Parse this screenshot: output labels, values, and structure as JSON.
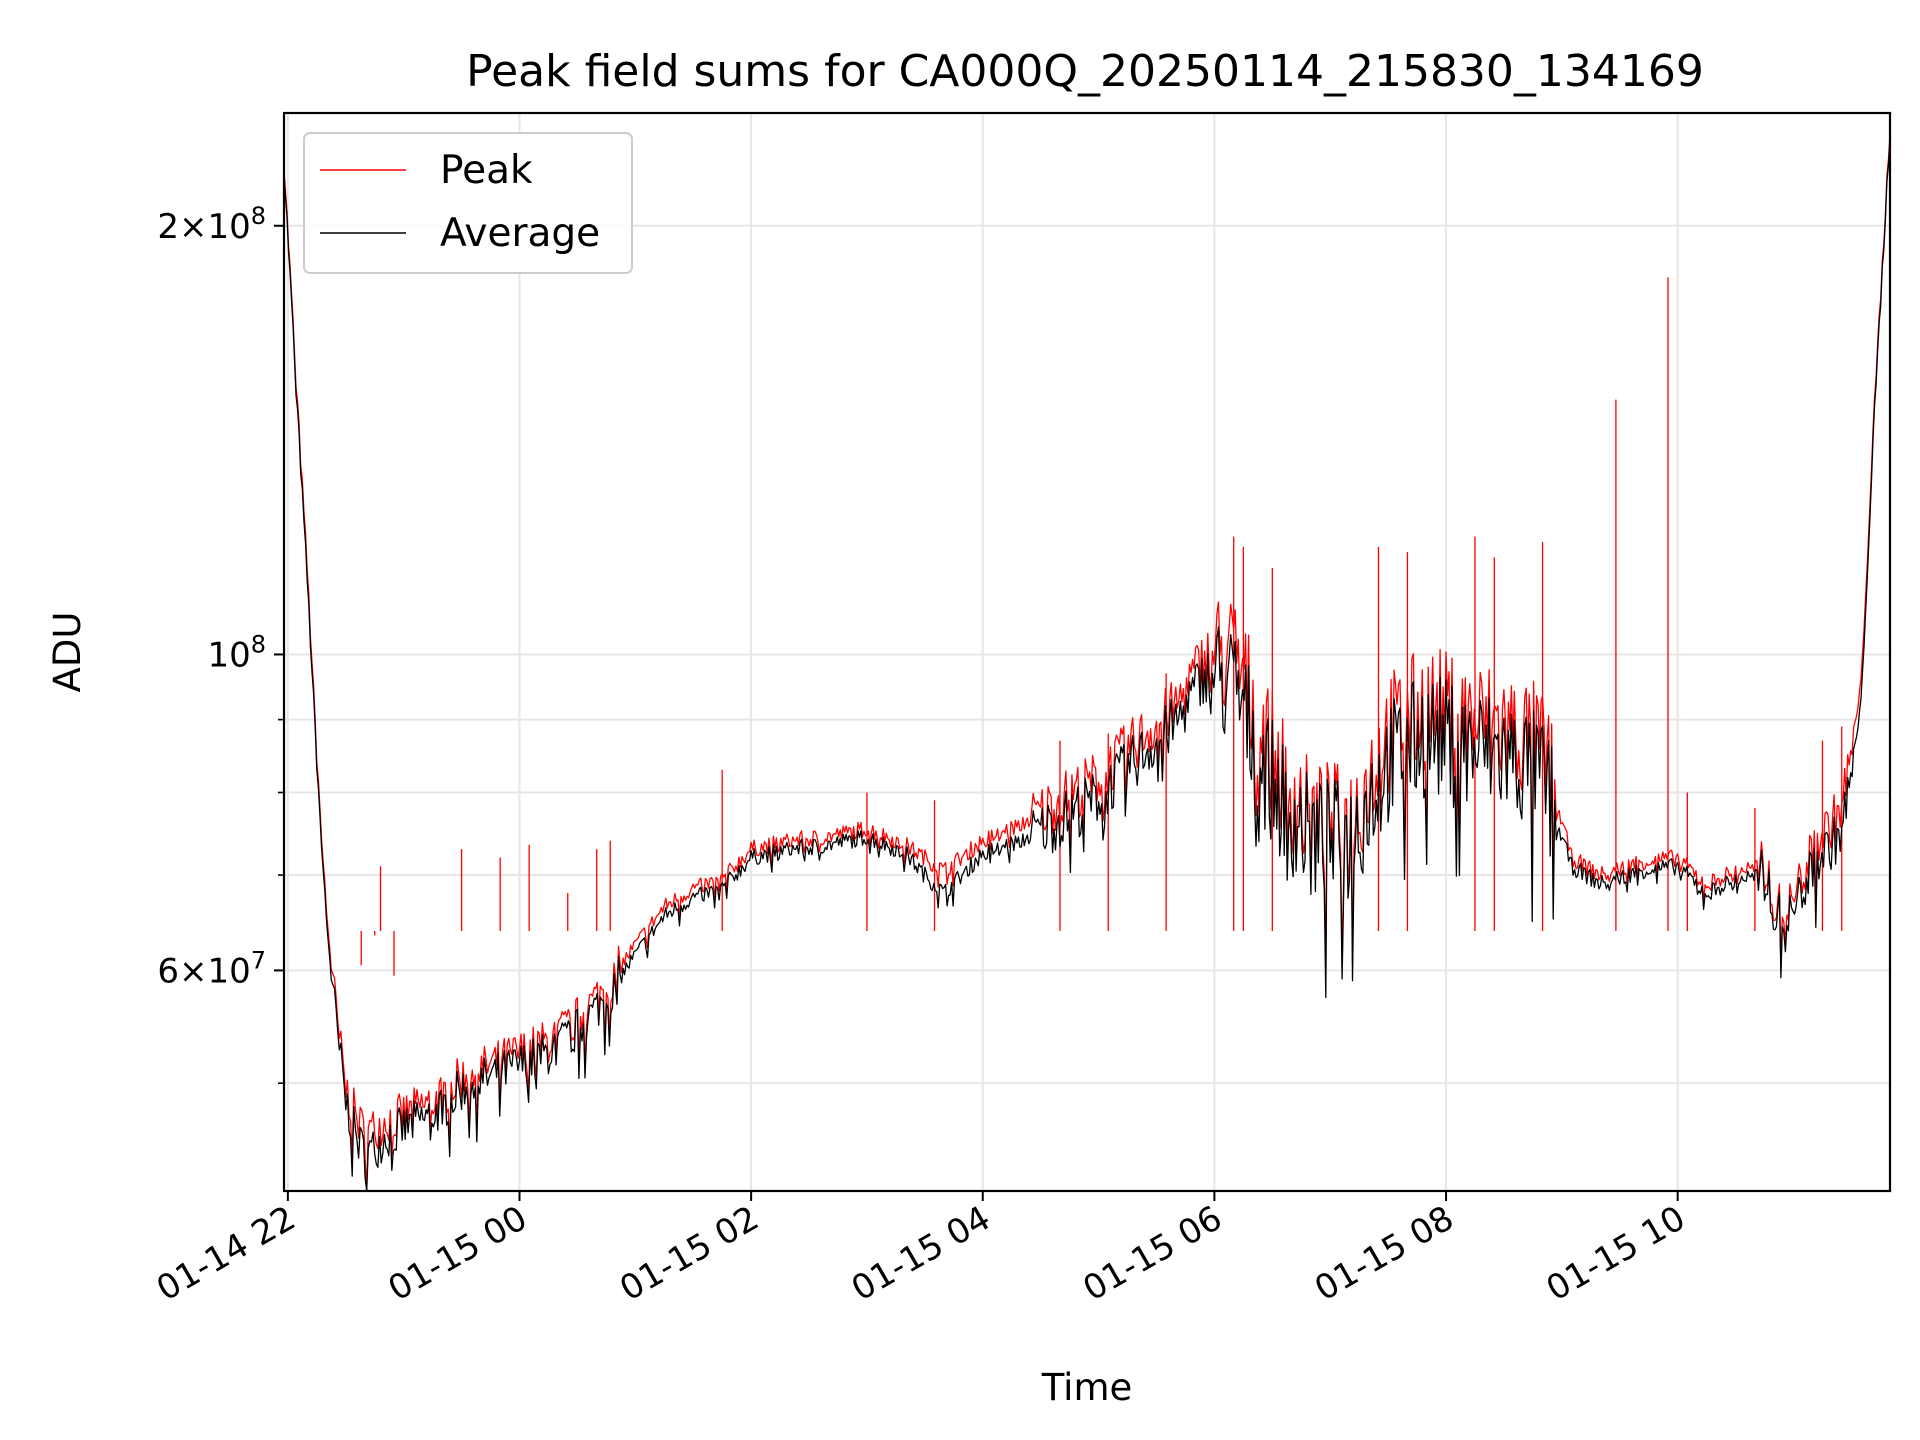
{
  "chart_data": {
    "type": "line",
    "title": "Peak field sums for CA000Q_20250114_215830_134169",
    "xlabel": "Time",
    "ylabel": "ADU",
    "yscale": "log",
    "ylim": [
      42000000,
      240000000
    ],
    "xlim": [
      "2025-01-14T21:58",
      "2025-01-15T11:50"
    ],
    "grid": true,
    "legend_position": "top-left",
    "x_ticks": [
      {
        "value": "2025-01-14T22:00",
        "label": "01-14 22"
      },
      {
        "value": "2025-01-15T00:00",
        "label": "01-15 00"
      },
      {
        "value": "2025-01-15T02:00",
        "label": "01-15 02"
      },
      {
        "value": "2025-01-15T04:00",
        "label": "01-15 04"
      },
      {
        "value": "2025-01-15T06:00",
        "label": "01-15 06"
      },
      {
        "value": "2025-01-15T08:00",
        "label": "01-15 08"
      },
      {
        "value": "2025-01-15T10:00",
        "label": "01-15 10"
      }
    ],
    "y_ticks": [
      {
        "value": 200000000,
        "mantissa": "2",
        "exponent": "8"
      },
      {
        "value": 100000000,
        "mantissa": "",
        "exponent": "8"
      },
      {
        "value": 60000000,
        "mantissa": "6",
        "exponent": "7"
      }
    ],
    "y_minor_ticks": [
      50000000,
      70000000,
      80000000,
      90000000
    ],
    "series": [
      {
        "name": "Peak",
        "color": "#ff0000",
        "points": [
          [
            "2025-01-14T21:58",
            222000000
          ],
          [
            "2025-01-14T22:05",
            150000000
          ],
          [
            "2025-01-14T22:10",
            115000000
          ],
          [
            "2025-01-14T22:15",
            85000000
          ],
          [
            "2025-01-14T22:20",
            66000000
          ],
          [
            "2025-01-14T22:25",
            56000000
          ],
          [
            "2025-01-14T22:30",
            49500000
          ],
          [
            "2025-01-14T22:35",
            47500000
          ],
          [
            "2025-01-14T22:40",
            46000000
          ],
          [
            "2025-01-14T22:45",
            46500000
          ],
          [
            "2025-01-14T22:50",
            47000000
          ],
          [
            "2025-01-14T23:00",
            47500000
          ],
          [
            "2025-01-14T23:10",
            48200000
          ],
          [
            "2025-01-14T23:20",
            49000000
          ],
          [
            "2025-01-14T23:30",
            50500000
          ],
          [
            "2025-01-14T23:45",
            51500000
          ],
          [
            "2025-01-15T00:00",
            52500000
          ],
          [
            "2025-01-15T00:15",
            53500000
          ],
          [
            "2025-01-15T00:30",
            55500000
          ],
          [
            "2025-01-15T00:45",
            58500000
          ],
          [
            "2025-01-15T01:00",
            62500000
          ],
          [
            "2025-01-15T01:15",
            66500000
          ],
          [
            "2025-01-15T01:30",
            68500000
          ],
          [
            "2025-01-15T01:45",
            69500000
          ],
          [
            "2025-01-15T02:00",
            73000000
          ],
          [
            "2025-01-15T02:20",
            74000000
          ],
          [
            "2025-01-15T02:40",
            74500000
          ],
          [
            "2025-01-15T03:00",
            75500000
          ],
          [
            "2025-01-15T03:20",
            73500000
          ],
          [
            "2025-01-15T03:30",
            72000000
          ],
          [
            "2025-01-15T03:40",
            70500000
          ],
          [
            "2025-01-15T04:00",
            74000000
          ],
          [
            "2025-01-15T04:20",
            76000000
          ],
          [
            "2025-01-15T04:40",
            79000000
          ],
          [
            "2025-01-15T05:00",
            82000000
          ],
          [
            "2025-01-15T05:20",
            87000000
          ],
          [
            "2025-01-15T05:40",
            92000000
          ],
          [
            "2025-01-15T05:55",
            100000000
          ],
          [
            "2025-01-15T06:10",
            100000000
          ],
          [
            "2025-01-15T06:30",
            85000000
          ],
          [
            "2025-01-15T06:50",
            76000000
          ],
          [
            "2025-01-15T07:10",
            76000000
          ],
          [
            "2025-01-15T07:30",
            88000000
          ],
          [
            "2025-01-15T07:50",
            92000000
          ],
          [
            "2025-01-15T08:10",
            90000000
          ],
          [
            "2025-01-15T08:30",
            89000000
          ],
          [
            "2025-01-15T08:50",
            86000000
          ],
          [
            "2025-01-15T09:05",
            72000000
          ],
          [
            "2025-01-15T09:20",
            70000000
          ],
          [
            "2025-01-15T09:40",
            71500000
          ],
          [
            "2025-01-15T10:00",
            72000000
          ],
          [
            "2025-01-15T10:15",
            69000000
          ],
          [
            "2025-01-15T10:30",
            70500000
          ],
          [
            "2025-01-15T10:45",
            71000000
          ],
          [
            "2025-01-15T10:55",
            65000000
          ],
          [
            "2025-01-15T11:10",
            73000000
          ],
          [
            "2025-01-15T11:25",
            78000000
          ],
          [
            "2025-01-15T11:35",
            95000000
          ],
          [
            "2025-01-15T11:42",
            150000000
          ],
          [
            "2025-01-15T11:50",
            235000000
          ]
        ],
        "spikes": [
          [
            "2025-01-14T22:38",
            60500000
          ],
          [
            "2025-01-14T22:45",
            63500000
          ],
          [
            "2025-01-14T22:48",
            71000000
          ],
          [
            "2025-01-14T22:55",
            59500000
          ],
          [
            "2025-01-14T23:30",
            73000000
          ],
          [
            "2025-01-14T23:50",
            72000000
          ],
          [
            "2025-01-15T00:05",
            73500000
          ],
          [
            "2025-01-15T00:25",
            68000000
          ],
          [
            "2025-01-15T00:40",
            73000000
          ],
          [
            "2025-01-15T00:47",
            74000000
          ],
          [
            "2025-01-15T01:45",
            83000000
          ],
          [
            "2025-01-15T03:00",
            80000000
          ],
          [
            "2025-01-15T03:35",
            79000000
          ],
          [
            "2025-01-15T04:40",
            87000000
          ],
          [
            "2025-01-15T05:05",
            88000000
          ],
          [
            "2025-01-15T05:35",
            97000000
          ],
          [
            "2025-01-15T06:10",
            121000000
          ],
          [
            "2025-01-15T06:15",
            119000000
          ],
          [
            "2025-01-15T06:30",
            115000000
          ],
          [
            "2025-01-15T07:25",
            119000000
          ],
          [
            "2025-01-15T07:40",
            118000000
          ],
          [
            "2025-01-15T08:15",
            121000000
          ],
          [
            "2025-01-15T08:25",
            117000000
          ],
          [
            "2025-01-15T08:50",
            120000000
          ],
          [
            "2025-01-15T09:28",
            151000000
          ],
          [
            "2025-01-15T09:55",
            184000000
          ],
          [
            "2025-01-15T10:05",
            80000000
          ],
          [
            "2025-01-15T10:40",
            78000000
          ],
          [
            "2025-01-15T11:15",
            87000000
          ],
          [
            "2025-01-15T11:25",
            89000000
          ]
        ]
      },
      {
        "name": "Average",
        "color": "#000000",
        "points": [
          [
            "2025-01-14T21:58",
            220000000
          ],
          [
            "2025-01-14T22:05",
            148000000
          ],
          [
            "2025-01-14T22:10",
            113000000
          ],
          [
            "2025-01-14T22:15",
            84000000
          ],
          [
            "2025-01-14T22:20",
            65000000
          ],
          [
            "2025-01-14T22:25",
            55000000
          ],
          [
            "2025-01-14T22:30",
            48500000
          ],
          [
            "2025-01-14T22:35",
            46000000
          ],
          [
            "2025-01-14T22:40",
            44500000
          ],
          [
            "2025-01-14T22:45",
            45000000
          ],
          [
            "2025-01-14T22:50",
            45800000
          ],
          [
            "2025-01-14T23:00",
            46500000
          ],
          [
            "2025-01-14T23:10",
            47200000
          ],
          [
            "2025-01-14T23:20",
            48000000
          ],
          [
            "2025-01-14T23:30",
            49500000
          ],
          [
            "2025-01-14T23:45",
            50500000
          ],
          [
            "2025-01-15T00:00",
            51500000
          ],
          [
            "2025-01-15T00:15",
            52500000
          ],
          [
            "2025-01-15T00:30",
            54500000
          ],
          [
            "2025-01-15T00:45",
            57500000
          ],
          [
            "2025-01-15T01:00",
            61500000
          ],
          [
            "2025-01-15T01:15",
            65500000
          ],
          [
            "2025-01-15T01:30",
            67500000
          ],
          [
            "2025-01-15T01:45",
            68500000
          ],
          [
            "2025-01-15T02:00",
            72000000
          ],
          [
            "2025-01-15T02:20",
            73000000
          ],
          [
            "2025-01-15T02:40",
            73500000
          ],
          [
            "2025-01-15T03:00",
            74500000
          ],
          [
            "2025-01-15T03:20",
            72500000
          ],
          [
            "2025-01-15T03:30",
            70000000
          ],
          [
            "2025-01-15T03:40",
            68000000
          ],
          [
            "2025-01-15T04:00",
            72500000
          ],
          [
            "2025-01-15T04:20",
            74000000
          ],
          [
            "2025-01-15T04:40",
            76500000
          ],
          [
            "2025-01-15T05:00",
            79500000
          ],
          [
            "2025-01-15T05:20",
            84500000
          ],
          [
            "2025-01-15T05:40",
            89500000
          ],
          [
            "2025-01-15T05:55",
            97000000
          ],
          [
            "2025-01-15T06:10",
            95000000
          ],
          [
            "2025-01-15T06:30",
            81000000
          ],
          [
            "2025-01-15T06:50",
            74000000
          ],
          [
            "2025-01-15T07:10",
            74000000
          ],
          [
            "2025-01-15T07:30",
            84000000
          ],
          [
            "2025-01-15T07:50",
            88000000
          ],
          [
            "2025-01-15T08:10",
            86000000
          ],
          [
            "2025-01-15T08:30",
            85000000
          ],
          [
            "2025-01-15T08:50",
            82000000
          ],
          [
            "2025-01-15T09:05",
            71000000
          ],
          [
            "2025-01-15T09:20",
            69000000
          ],
          [
            "2025-01-15T09:40",
            70500000
          ],
          [
            "2025-01-15T10:00",
            71000000
          ],
          [
            "2025-01-15T10:15",
            68000000
          ],
          [
            "2025-01-15T10:30",
            69500000
          ],
          [
            "2025-01-15T10:45",
            70000000
          ],
          [
            "2025-01-15T10:55",
            64000000
          ],
          [
            "2025-01-15T11:10",
            71000000
          ],
          [
            "2025-01-15T11:25",
            75000000
          ],
          [
            "2025-01-15T11:35",
            92000000
          ],
          [
            "2025-01-15T11:42",
            148000000
          ],
          [
            "2025-01-15T11:50",
            233000000
          ]
        ]
      }
    ]
  }
}
